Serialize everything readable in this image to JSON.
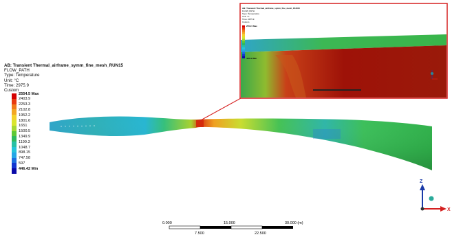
{
  "result_info": {
    "title": "AB: Transient Thermal_airframe_symm_fine_mesh_RUN15",
    "object": "FLOW_PATH",
    "type": "Type: Temperature",
    "unit": "Unit: °C",
    "time": "Time: 2975.9",
    "option": "Custom"
  },
  "legend": {
    "entries": [
      {
        "label": "2554.5 Max",
        "color": "#d40000",
        "bold": true
      },
      {
        "label": "2403.9",
        "color": "#e83a10"
      },
      {
        "label": "2253.3",
        "color": "#f07a1a"
      },
      {
        "label": "2102.8",
        "color": "#f3a722"
      },
      {
        "label": "1952.2",
        "color": "#f4d22a"
      },
      {
        "label": "1801.6",
        "color": "#d9e52e"
      },
      {
        "label": "1651",
        "color": "#a6d933"
      },
      {
        "label": "1500.5",
        "color": "#5ec936"
      },
      {
        "label": "1349.9",
        "color": "#2fba5e"
      },
      {
        "label": "1199.3",
        "color": "#27c0a5"
      },
      {
        "label": "1048.7",
        "color": "#25c4d9"
      },
      {
        "label": "898.15",
        "color": "#24a6e6"
      },
      {
        "label": "747.58",
        "color": "#1c6fe0"
      },
      {
        "label": "597",
        "color": "#1236d0"
      },
      {
        "label": "446.42 Min",
        "color": "#0a0aa8",
        "bold": true
      }
    ]
  },
  "scale_bar": {
    "top_labels": [
      "0.000",
      "15.000",
      "30.000 (m)"
    ],
    "bottom_labels": [
      "7.500",
      "22.500"
    ]
  },
  "triad": {
    "z_label": "Z",
    "x_label": "X"
  },
  "inset": {
    "title": "AB: Transient Thermal_airframe_symm_fine_mesh_RUN15",
    "lines": [
      "FLOW_PATH",
      "Type: Temperature",
      "Unit: °C",
      "Time: 2975.9",
      "Custom"
    ],
    "max_label": "2554.5 Max",
    "min_label": "446.42 Min"
  },
  "colors": {
    "highlight_border": "#d62020",
    "triad_z": "#1a3aa8",
    "triad_x": "#d42020",
    "triad_ball": "#2aaa9a"
  }
}
